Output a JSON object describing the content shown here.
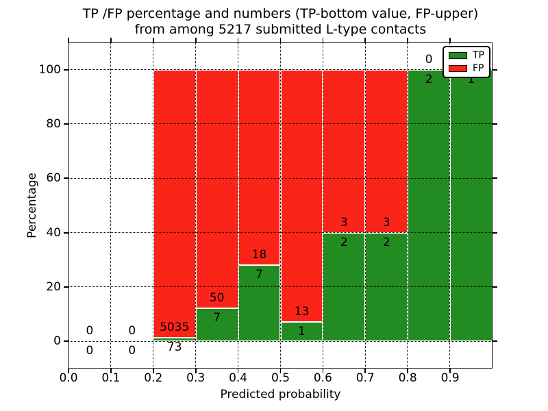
{
  "background_color": "#ffffff",
  "chart_data": {
    "type": "bar",
    "stacked": true,
    "title_line1": "TP /FP percentage and numbers (TP-bottom value, FP-upper)",
    "title_line2": "from among 5217 submitted L-type contacts",
    "xlabel": "Predicted probability",
    "ylabel": "Percentage",
    "xlim": [
      0.0,
      1.0
    ],
    "ylim": [
      -10,
      110
    ],
    "xticks": [
      "0.0",
      "0.1",
      "0.2",
      "0.3",
      "0.4",
      "0.5",
      "0.6",
      "0.7",
      "0.8",
      "0.9"
    ],
    "yticks": [
      0,
      20,
      40,
      60,
      80,
      100
    ],
    "grid": {
      "style": "dotted",
      "color": "#000000",
      "drawn_above_bars": true
    },
    "total_contacts": 5217,
    "colors": {
      "tp": "#228b22",
      "fp": "#fb2418",
      "bar_edge": "#ffffff"
    },
    "legend": {
      "position": "upper-right",
      "entries": [
        {
          "label": "TP",
          "color": "#228b22"
        },
        {
          "label": "FP",
          "color": "#fb2418"
        }
      ]
    },
    "bins": [
      {
        "range": [
          0.0,
          0.1
        ],
        "tp": 0,
        "fp": 0,
        "tp_pct": 0,
        "fp_pct": 0,
        "fp_label_visible": true
      },
      {
        "range": [
          0.1,
          0.2
        ],
        "tp": 0,
        "fp": 0,
        "tp_pct": 0,
        "fp_pct": 0,
        "fp_label_visible": true
      },
      {
        "range": [
          0.2,
          0.3
        ],
        "tp": 73,
        "fp": 5035,
        "tp_pct": 1.429,
        "fp_pct": 98.571,
        "fp_label_visible": true
      },
      {
        "range": [
          0.3,
          0.4
        ],
        "tp": 7,
        "fp": 50,
        "tp_pct": 12.281,
        "fp_pct": 87.719,
        "fp_label_visible": true
      },
      {
        "range": [
          0.4,
          0.5
        ],
        "tp": 7,
        "fp": 18,
        "tp_pct": 28.0,
        "fp_pct": 72.0,
        "fp_label_visible": true
      },
      {
        "range": [
          0.5,
          0.6
        ],
        "tp": 1,
        "fp": 13,
        "tp_pct": 7.143,
        "fp_pct": 92.857,
        "fp_label_visible": true
      },
      {
        "range": [
          0.6,
          0.7
        ],
        "tp": 2,
        "fp": 3,
        "tp_pct": 40.0,
        "fp_pct": 60.0,
        "fp_label_visible": true
      },
      {
        "range": [
          0.7,
          0.8
        ],
        "tp": 2,
        "fp": 3,
        "tp_pct": 40.0,
        "fp_pct": 60.0,
        "fp_label_visible": true
      },
      {
        "range": [
          0.8,
          0.9
        ],
        "tp": 2,
        "fp": 0,
        "tp_pct": 100.0,
        "fp_pct": 0,
        "fp_label_visible": true
      },
      {
        "range": [
          0.9,
          1.0
        ],
        "tp": 1,
        "fp": 0,
        "tp_pct": 100.0,
        "fp_pct": 0,
        "fp_label_visible": false
      }
    ]
  }
}
